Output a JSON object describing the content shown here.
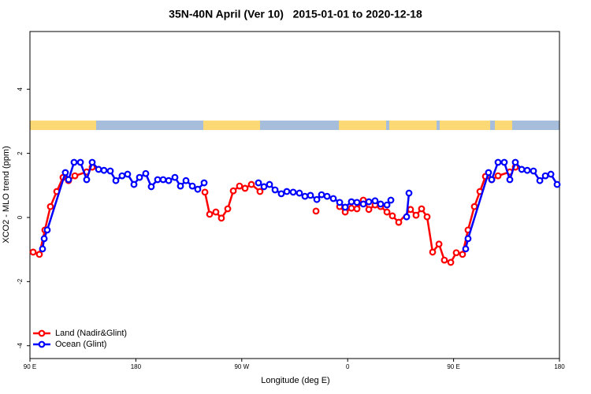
{
  "chart_data": {
    "type": "line",
    "title": "35N-40N April (Ver 10)   2015-01-01 to 2020-12-18",
    "xlabel": "Longitude (deg E)",
    "ylabel": "XCO2 - MLO trend (ppm)",
    "xlim": [
      90,
      540
    ],
    "xticks": [
      {
        "value": 90,
        "label": "90 E"
      },
      180,
      {
        "value": 270,
        "label": "90 W"
      },
      {
        "value": 360,
        "label": "0"
      },
      {
        "value": 450,
        "label": "90 E"
      },
      {
        "value": 540,
        "label": "180"
      }
    ],
    "ylim": [
      -4.4,
      5.8
    ],
    "yticks": [
      -4,
      -2,
      0,
      2,
      4
    ],
    "legend": "bottom-left",
    "series": [
      {
        "name": "Land (Nadir&Glint)",
        "color": "#ff0000",
        "x": [
          92.7,
          98.0,
          102.7,
          107.4,
          112.8,
          118.1,
          122.8,
          128.2,
          138.2,
          142.9,
          null,
          238.7,
          242.7,
          248.0,
          252.7,
          258.1,
          262.8,
          268.1,
          272.8,
          278.2,
          285.5,
          null,
          333.1,
          null,
          353.2,
          357.9,
          363.2,
          367.9,
          373.3,
          378.0,
          383.3,
          388.0,
          393.4,
          398.0,
          403.4,
          413.4,
          418.1,
          422.8,
          427.5,
          432.2,
          437.6,
          442.2,
          447.6,
          452.3,
          457.6,
          462.3,
          467.7,
          472.4,
          477.1,
          482.4,
          487.8,
          497.8,
          502.5
        ],
        "values": [
          -1.08,
          -1.15,
          -0.39,
          0.34,
          0.81,
          1.25,
          1.15,
          1.3,
          1.42,
          1.57,
          null,
          0.79,
          0.1,
          0.17,
          -0.02,
          0.27,
          0.83,
          0.98,
          0.91,
          1.03,
          0.81,
          null,
          0.2,
          null,
          0.34,
          0.17,
          0.29,
          0.27,
          0.54,
          0.25,
          0.39,
          0.34,
          0.17,
          0.05,
          -0.15,
          0.25,
          0.07,
          0.27,
          0.02,
          -1.08,
          -0.83,
          -1.33,
          -1.4,
          -1.1,
          -1.15,
          -0.39,
          0.34,
          0.81,
          1.28,
          1.18,
          1.3,
          1.42,
          1.57
        ]
      },
      {
        "name": "Ocean (Glint)",
        "color": "#0000ff",
        "x": [
          100.7,
          102.1,
          104.7,
          120.1,
          122.8,
          127.5,
          132.9,
          138.2,
          142.9,
          148.3,
          152.9,
          158.3,
          163.0,
          168.3,
          173.0,
          178.4,
          183.1,
          188.4,
          193.1,
          198.5,
          203.2,
          207.9,
          213.2,
          217.9,
          222.6,
          228.0,
          232.6,
          238.0,
          null,
          284.2,
          288.9,
          293.6,
          298.3,
          303.6,
          308.3,
          313.7,
          319.0,
          323.7,
          328.4,
          333.8,
          337.8,
          342.5,
          347.8,
          353.2,
          357.9,
          363.2,
          367.9,
          373.3,
          378.0,
          383.3,
          388.0,
          393.4,
          396.7,
          null,
          410.1,
          412.1,
          null,
          460.3,
          462.3,
          479.7,
          482.4,
          487.8,
          493.1,
          497.8,
          502.5,
          507.9,
          512.6,
          517.9,
          523.3,
          528.0,
          532.7,
          538.0
        ],
        "values": [
          -0.98,
          -0.66,
          -0.39,
          1.4,
          1.18,
          1.72,
          1.72,
          1.18,
          1.72,
          1.5,
          1.47,
          1.45,
          1.15,
          1.3,
          1.35,
          1.03,
          1.25,
          1.37,
          0.96,
          1.18,
          1.18,
          1.15,
          1.25,
          0.98,
          1.15,
          0.98,
          0.88,
          1.08,
          null,
          1.08,
          0.96,
          1.03,
          0.86,
          0.74,
          0.81,
          0.79,
          0.76,
          0.66,
          0.69,
          0.56,
          0.71,
          0.66,
          0.59,
          0.47,
          0.32,
          0.49,
          0.47,
          0.42,
          0.49,
          0.52,
          0.42,
          0.39,
          0.54,
          null,
          0.02,
          0.76,
          null,
          -0.98,
          -0.66,
          1.4,
          1.18,
          1.72,
          1.72,
          1.18,
          1.72,
          1.5,
          1.47,
          1.45,
          1.15,
          1.3,
          1.35,
          1.03
        ]
      }
    ]
  }
}
